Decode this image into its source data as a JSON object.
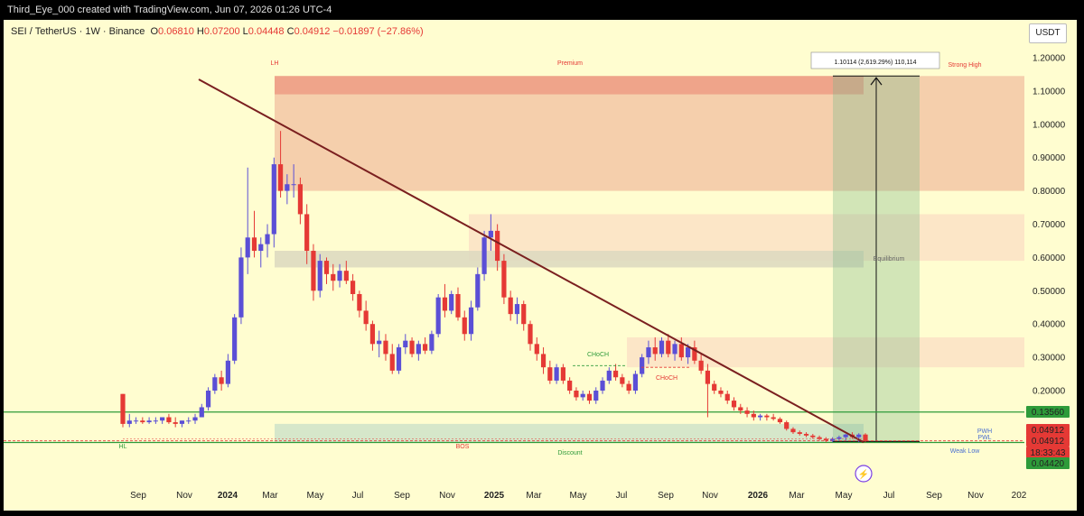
{
  "header": {
    "attribution": "Third_Eye_000 created with TradingView.com, Jun 07, 2026 01:26 UTC-4"
  },
  "legend": {
    "symbol": "SEI / TetherUS · 1W · Binance",
    "open_label": "O",
    "open": "0.06810",
    "high_label": "H",
    "high": "0.07200",
    "low_label": "L",
    "low": "0.04448",
    "close_label": "C",
    "close": "0.04912",
    "change": "−0.01897 (−27.86%)"
  },
  "currency": "USDT",
  "colors": {
    "background": "#fffdd0",
    "up_candle": "#5b4fd6",
    "down_candle": "#e53935",
    "trendline": "#7a1f1f",
    "premium_zone": "#f3c7a6",
    "green_line": "#2e9b3a",
    "measure_box": "#7fb88a"
  },
  "chart_data": {
    "type": "candlestick",
    "title": "SEI / TetherUS · 1W · Binance",
    "y_axis_ticks": [
      "1.20000",
      "1.10000",
      "1.00000",
      "0.90000",
      "0.80000",
      "0.70000",
      "0.60000",
      "0.50000",
      "0.40000",
      "0.30000",
      "0.20000"
    ],
    "x_axis_ticks": [
      "Sep",
      "Nov",
      "2024",
      "Mar",
      "May",
      "Jul",
      "Sep",
      "Nov",
      "2025",
      "Mar",
      "May",
      "Jul",
      "Sep",
      "Nov",
      "2026",
      "Mar",
      "May",
      "Jul",
      "Sep",
      "Nov",
      "202"
    ],
    "ylim": [
      0.0,
      1.2
    ],
    "price_tags": [
      {
        "value": "0.13560",
        "color": "#2e9b3a"
      },
      {
        "value": "0.04912",
        "color": "#e53935"
      },
      {
        "value": "0.04912",
        "color": "#e53935"
      },
      {
        "value": "18:33:43",
        "color": "#e53935"
      },
      {
        "value": "0.04420",
        "color": "#2e9b3a"
      }
    ],
    "candles": [
      [
        0.19,
        0.19,
        0.09,
        0.1
      ],
      [
        0.1,
        0.13,
        0.09,
        0.11
      ],
      [
        0.11,
        0.12,
        0.1,
        0.11
      ],
      [
        0.11,
        0.12,
        0.1,
        0.105
      ],
      [
        0.105,
        0.12,
        0.1,
        0.11
      ],
      [
        0.11,
        0.12,
        0.1,
        0.11
      ],
      [
        0.11,
        0.12,
        0.1,
        0.12
      ],
      [
        0.12,
        0.13,
        0.1,
        0.105
      ],
      [
        0.105,
        0.12,
        0.09,
        0.1
      ],
      [
        0.1,
        0.11,
        0.09,
        0.11
      ],
      [
        0.11,
        0.12,
        0.1,
        0.11
      ],
      [
        0.11,
        0.13,
        0.1,
        0.12
      ],
      [
        0.12,
        0.16,
        0.12,
        0.15
      ],
      [
        0.15,
        0.21,
        0.14,
        0.2
      ],
      [
        0.2,
        0.25,
        0.19,
        0.24
      ],
      [
        0.24,
        0.26,
        0.2,
        0.22
      ],
      [
        0.22,
        0.31,
        0.21,
        0.29
      ],
      [
        0.29,
        0.43,
        0.28,
        0.42
      ],
      [
        0.42,
        0.63,
        0.4,
        0.6
      ],
      [
        0.6,
        0.87,
        0.55,
        0.66
      ],
      [
        0.66,
        0.74,
        0.6,
        0.62
      ],
      [
        0.62,
        0.66,
        0.57,
        0.64
      ],
      [
        0.64,
        0.7,
        0.6,
        0.67
      ],
      [
        0.67,
        0.9,
        0.63,
        0.88
      ],
      [
        0.88,
        0.98,
        0.78,
        0.8
      ],
      [
        0.8,
        0.85,
        0.76,
        0.82
      ],
      [
        0.82,
        0.88,
        0.78,
        0.82
      ],
      [
        0.82,
        0.84,
        0.7,
        0.73
      ],
      [
        0.73,
        0.76,
        0.58,
        0.62
      ],
      [
        0.62,
        0.64,
        0.47,
        0.5
      ],
      [
        0.5,
        0.61,
        0.48,
        0.59
      ],
      [
        0.59,
        0.6,
        0.52,
        0.55
      ],
      [
        0.55,
        0.58,
        0.5,
        0.53
      ],
      [
        0.53,
        0.58,
        0.51,
        0.56
      ],
      [
        0.56,
        0.59,
        0.52,
        0.53
      ],
      [
        0.53,
        0.55,
        0.47,
        0.49
      ],
      [
        0.49,
        0.5,
        0.42,
        0.44
      ],
      [
        0.44,
        0.47,
        0.38,
        0.4
      ],
      [
        0.4,
        0.41,
        0.32,
        0.34
      ],
      [
        0.34,
        0.38,
        0.3,
        0.35
      ],
      [
        0.35,
        0.37,
        0.29,
        0.31
      ],
      [
        0.31,
        0.34,
        0.25,
        0.26
      ],
      [
        0.26,
        0.34,
        0.25,
        0.33
      ],
      [
        0.33,
        0.37,
        0.31,
        0.35
      ],
      [
        0.35,
        0.36,
        0.3,
        0.31
      ],
      [
        0.31,
        0.35,
        0.29,
        0.34
      ],
      [
        0.34,
        0.36,
        0.31,
        0.32
      ],
      [
        0.32,
        0.38,
        0.31,
        0.37
      ],
      [
        0.37,
        0.49,
        0.36,
        0.48
      ],
      [
        0.48,
        0.52,
        0.42,
        0.44
      ],
      [
        0.44,
        0.5,
        0.43,
        0.49
      ],
      [
        0.49,
        0.51,
        0.41,
        0.42
      ],
      [
        0.42,
        0.44,
        0.35,
        0.37
      ],
      [
        0.37,
        0.47,
        0.35,
        0.45
      ],
      [
        0.45,
        0.57,
        0.44,
        0.55
      ],
      [
        0.55,
        0.68,
        0.53,
        0.66
      ],
      [
        0.66,
        0.73,
        0.62,
        0.68
      ],
      [
        0.68,
        0.7,
        0.56,
        0.59
      ],
      [
        0.59,
        0.61,
        0.46,
        0.48
      ],
      [
        0.48,
        0.5,
        0.41,
        0.43
      ],
      [
        0.43,
        0.48,
        0.4,
        0.46
      ],
      [
        0.46,
        0.47,
        0.38,
        0.4
      ],
      [
        0.4,
        0.41,
        0.32,
        0.34
      ],
      [
        0.34,
        0.36,
        0.29,
        0.31
      ],
      [
        0.31,
        0.33,
        0.25,
        0.27
      ],
      [
        0.27,
        0.29,
        0.22,
        0.23
      ],
      [
        0.23,
        0.28,
        0.22,
        0.27
      ],
      [
        0.27,
        0.28,
        0.22,
        0.23
      ],
      [
        0.23,
        0.24,
        0.19,
        0.2
      ],
      [
        0.2,
        0.21,
        0.17,
        0.18
      ],
      [
        0.18,
        0.2,
        0.17,
        0.19
      ],
      [
        0.19,
        0.2,
        0.16,
        0.17
      ],
      [
        0.17,
        0.21,
        0.16,
        0.2
      ],
      [
        0.2,
        0.24,
        0.19,
        0.23
      ],
      [
        0.23,
        0.27,
        0.22,
        0.26
      ],
      [
        0.26,
        0.28,
        0.23,
        0.24
      ],
      [
        0.24,
        0.25,
        0.21,
        0.22
      ],
      [
        0.22,
        0.23,
        0.19,
        0.2
      ],
      [
        0.2,
        0.26,
        0.19,
        0.25
      ],
      [
        0.25,
        0.31,
        0.24,
        0.3
      ],
      [
        0.3,
        0.35,
        0.28,
        0.33
      ],
      [
        0.33,
        0.36,
        0.29,
        0.31
      ],
      [
        0.31,
        0.36,
        0.3,
        0.35
      ],
      [
        0.35,
        0.37,
        0.3,
        0.31
      ],
      [
        0.31,
        0.35,
        0.29,
        0.34
      ],
      [
        0.34,
        0.36,
        0.29,
        0.3
      ],
      [
        0.3,
        0.34,
        0.28,
        0.33
      ],
      [
        0.33,
        0.35,
        0.28,
        0.29
      ],
      [
        0.29,
        0.31,
        0.25,
        0.26
      ],
      [
        0.26,
        0.28,
        0.12,
        0.22
      ],
      [
        0.22,
        0.23,
        0.19,
        0.2
      ],
      [
        0.2,
        0.21,
        0.18,
        0.19
      ],
      [
        0.19,
        0.2,
        0.16,
        0.17
      ],
      [
        0.17,
        0.18,
        0.14,
        0.15
      ],
      [
        0.15,
        0.16,
        0.13,
        0.14
      ],
      [
        0.14,
        0.15,
        0.12,
        0.13
      ],
      [
        0.13,
        0.14,
        0.11,
        0.12
      ],
      [
        0.12,
        0.13,
        0.11,
        0.125
      ],
      [
        0.125,
        0.13,
        0.11,
        0.12
      ],
      [
        0.12,
        0.13,
        0.11,
        0.115
      ],
      [
        0.115,
        0.12,
        0.1,
        0.105
      ],
      [
        0.105,
        0.11,
        0.08,
        0.085
      ],
      [
        0.085,
        0.09,
        0.07,
        0.075
      ],
      [
        0.075,
        0.08,
        0.065,
        0.07
      ],
      [
        0.07,
        0.075,
        0.06,
        0.065
      ],
      [
        0.065,
        0.07,
        0.055,
        0.06
      ],
      [
        0.06,
        0.065,
        0.05,
        0.055
      ],
      [
        0.055,
        0.06,
        0.045,
        0.05
      ],
      [
        0.05,
        0.06,
        0.045,
        0.055
      ],
      [
        0.055,
        0.065,
        0.05,
        0.06
      ],
      [
        0.06,
        0.07,
        0.05,
        0.068
      ],
      [
        0.068,
        0.075,
        0.055,
        0.06
      ],
      [
        0.06,
        0.072,
        0.045,
        0.068
      ],
      [
        0.0681,
        0.072,
        0.04448,
        0.04912
      ]
    ],
    "zones": [
      {
        "label": "Premium",
        "y_low": 0.8,
        "y_high": 1.145,
        "color": "#f3c7a6"
      },
      {
        "label": "",
        "y_low": 0.59,
        "y_high": 0.73,
        "color": "#fbe2c6"
      },
      {
        "label": "Equilibrium",
        "y_low": 0.57,
        "y_high": 0.62,
        "color": "#dcd8c0"
      },
      {
        "label": "",
        "y_low": 0.27,
        "y_high": 0.36,
        "color": "#fbe2c6"
      },
      {
        "label": "Discount",
        "y_low": 0.045,
        "y_high": 0.1,
        "color": "#cfe3c9"
      }
    ],
    "horizontal_lines": [
      {
        "value": 0.1356,
        "color": "#2e9b3a"
      },
      {
        "value": 0.0442,
        "color": "#2e9b3a"
      },
      {
        "value": 0.04912,
        "color": "#e53935"
      }
    ],
    "annotations": [
      "LH",
      "Premium",
      "Strong High",
      "Equilibrium",
      "CHoCH",
      "CHoCH",
      "BOS",
      "Discount",
      "HL",
      "PWH",
      "PWL",
      "Weak Low"
    ],
    "measure_label": "1.10114 (2,619.29%) 110,114"
  }
}
